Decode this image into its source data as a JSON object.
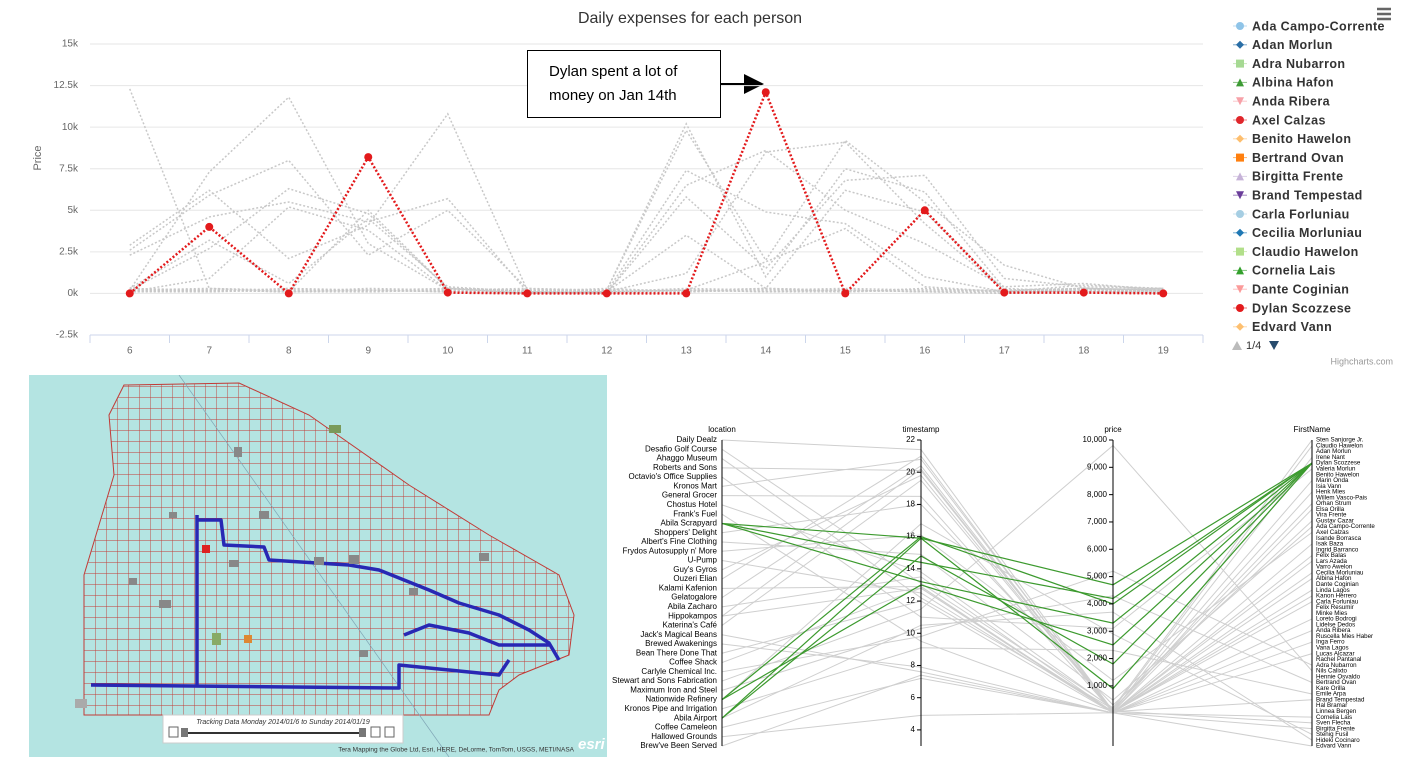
{
  "chart_data": [
    {
      "type": "line",
      "title": "Daily expenses for each person",
      "y_title": "Price",
      "categories": [
        "6",
        "7",
        "8",
        "9",
        "10",
        "11",
        "12",
        "13",
        "14",
        "15",
        "16",
        "17",
        "18",
        "19"
      ],
      "ylim": [
        -2500,
        15000
      ],
      "yticks": [
        {
          "value": -2500,
          "label": "-2.5k"
        },
        {
          "value": 0,
          "label": "0k"
        },
        {
          "value": 2500,
          "label": "2.5k"
        },
        {
          "value": 5000,
          "label": "5k"
        },
        {
          "value": 7500,
          "label": "7.5k"
        },
        {
          "value": 10000,
          "label": "10k"
        },
        {
          "value": 12500,
          "label": "12.5k"
        },
        {
          "value": 15000,
          "label": "15k"
        }
      ],
      "grid": true,
      "dash_style": "dot",
      "muted_color": "#c8c8c8",
      "annotation": "Dylan spent a lot of money on Jan 14th",
      "legend_page": "1/4",
      "credits": "Highcharts.com",
      "series": [
        {
          "name": "Ada Campo-Corrente",
          "color": "#8fc4e8",
          "marker": "circle",
          "values": [
            12300,
            300,
            100,
            200,
            100,
            0,
            0,
            200,
            100,
            200,
            100,
            0,
            200,
            100
          ]
        },
        {
          "name": "Adan Morlun",
          "color": "#2a6ea6",
          "marker": "diamond",
          "values": [
            2900,
            6200,
            2100,
            4100,
            10800,
            200,
            200,
            9800,
            2000,
            9200,
            5500,
            1700,
            300,
            200
          ]
        },
        {
          "name": "Adra Nubarron",
          "color": "#a6d993",
          "marker": "square",
          "values": [
            200,
            7300,
            11800,
            3000,
            200,
            100,
            0,
            6500,
            8600,
            5000,
            3000,
            400,
            600,
            200
          ]
        },
        {
          "name": "Albina Hafon",
          "color": "#3d9b35",
          "marker": "triangle",
          "values": [
            2600,
            5900,
            8000,
            2300,
            5000,
            300,
            100,
            7400,
            4900,
            4200,
            1000,
            100,
            500,
            300
          ]
        },
        {
          "name": "Anda Ribera",
          "color": "#f7a1a8",
          "marker": "triangle-down",
          "values": [
            200,
            2700,
            6300,
            4800,
            300,
            200,
            200,
            10200,
            1000,
            7500,
            6100,
            300,
            100,
            100
          ]
        },
        {
          "name": "Axel Calzas",
          "color": "#e0262b",
          "marker": "circle",
          "values": [
            2300,
            4600,
            5500,
            4300,
            5700,
            100,
            0,
            5800,
            1500,
            6800,
            7100,
            900,
            400,
            300
          ]
        },
        {
          "name": "Benito Hawelon",
          "color": "#fdbe6e",
          "marker": "diamond",
          "values": [
            100,
            900,
            5200,
            3800,
            200,
            200,
            100,
            3500,
            300,
            6200,
            4900,
            200,
            300,
            100
          ]
        },
        {
          "name": "Bertrand Ovan",
          "color": "#ff7f0e",
          "marker": "square",
          "values": [
            300,
            3200,
            600,
            4500,
            400,
            100,
            100,
            1200,
            8500,
            9100,
            4200,
            200,
            200,
            100
          ]
        },
        {
          "name": "Birgitta Frente",
          "color": "#c6b3d8",
          "marker": "triangle",
          "values": [
            100,
            200,
            100,
            5000,
            300,
            0,
            100,
            200,
            1900,
            3900,
            400,
            100,
            100,
            0
          ]
        },
        {
          "name": "Brand Tempestad",
          "color": "#6a3d9a",
          "marker": "triangle-down",
          "values": [
            200,
            100,
            300,
            200,
            100,
            200,
            100,
            300,
            200,
            100,
            200,
            100,
            300,
            200
          ]
        },
        {
          "name": "Carla Forluniau",
          "color": "#a6cee3",
          "marker": "circle",
          "values": [
            100,
            200,
            100,
            300,
            200,
            100,
            200,
            100,
            300,
            200,
            100,
            200,
            100,
            300
          ]
        },
        {
          "name": "Cecilia Morluniau",
          "color": "#1f78b4",
          "marker": "diamond",
          "values": [
            300,
            200,
            100,
            200,
            300,
            200,
            100,
            200,
            300,
            200,
            100,
            200,
            300,
            200
          ]
        },
        {
          "name": "Claudio Hawelon",
          "color": "#b2df8a",
          "marker": "square",
          "values": [
            200,
            300,
            200,
            100,
            200,
            300,
            200,
            100,
            200,
            300,
            200,
            100,
            200,
            300
          ]
        },
        {
          "name": "Cornelia Lais",
          "color": "#33a02c",
          "marker": "triangle",
          "values": [
            100,
            100,
            200,
            200,
            100,
            100,
            200,
            200,
            100,
            100,
            200,
            200,
            100,
            100
          ]
        },
        {
          "name": "Dante Coginian",
          "color": "#fb9a99",
          "marker": "triangle-down",
          "values": [
            200,
            200,
            100,
            100,
            200,
            200,
            100,
            100,
            200,
            200,
            100,
            100,
            200,
            200
          ]
        },
        {
          "name": "Dylan Scozzese",
          "color": "#e31a1c",
          "marker": "circle",
          "highlighted": true,
          "values": [
            0,
            4000,
            0,
            8200,
            50,
            0,
            0,
            0,
            12100,
            0,
            5000,
            50,
            50,
            0
          ]
        },
        {
          "name": "Edvard Vann",
          "color": "#fdbf6f",
          "marker": "diamond",
          "values": [
            300,
            100,
            300,
            100,
            300,
            100,
            300,
            100,
            300,
            100,
            300,
            100,
            300,
            100
          ]
        }
      ]
    },
    {
      "type": "parallel",
      "axes": [
        "location",
        "timestamp",
        "price",
        "FirstName"
      ],
      "color": "#cfcfcf",
      "highlight_color": "#3c9a2e",
      "locations": [
        "Daily Dealz",
        "Desafio Golf Course",
        "Ahaggo Museum",
        "Roberts and Sons",
        "Octavio's Office Supplies",
        "Kronos Mart",
        "General Grocer",
        "Chostus Hotel",
        "Frank's Fuel",
        "Abila Scrapyard",
        "Shoppers' Delight",
        "Albert's Fine Clothing",
        "Frydos Autosupply n' More",
        "U-Pump",
        "Guy's Gyros",
        "Ouzeri Elian",
        "Kalami Kafenion",
        "Gelatogalore",
        "Abila Zacharo",
        "Hippokampos",
        "Katerina's Café",
        "Jack's Magical Beans",
        "Brewed Awakenings",
        "Bean There Done That",
        "Coffee Shack",
        "Carlyle Chemical Inc.",
        "Stewart and Sons Fabrication",
        "Maximum Iron and Steel",
        "Nationwide Refinery",
        "Kronos Pipe and Irrigation",
        "Abila Airport",
        "Coffee Cameleon",
        "Hallowed Grounds",
        "Brew've Been Served"
      ],
      "timestamp_lim": [
        3,
        22
      ],
      "timestamp_ticks": [
        4,
        6,
        8,
        10,
        12,
        14,
        16,
        18,
        20,
        22
      ],
      "price_lim": [
        -1200,
        10000
      ],
      "price_ticks": [
        {
          "value": 1000,
          "label": "1,000"
        },
        {
          "value": 2000,
          "label": "2,000"
        },
        {
          "value": 3000,
          "label": "3,000"
        },
        {
          "value": 4000,
          "label": "4,000"
        },
        {
          "value": 5000,
          "label": "5,000"
        },
        {
          "value": 6000,
          "label": "6,000"
        },
        {
          "value": 7000,
          "label": "7,000"
        },
        {
          "value": 8000,
          "label": "8,000"
        },
        {
          "value": 9000,
          "label": "9,000"
        },
        {
          "value": 10000,
          "label": "10,000"
        }
      ],
      "names": [
        "Sten Sanjorge Jr.",
        "Claudio Hawelon",
        "Adan Morlun",
        "Irene Nant",
        "Dylan Scozzese",
        "Valeria Morlun",
        "Benito Hawelon",
        "Marin Onda",
        "Isia Vann",
        "Henk Mies",
        "Willem Vasco-Pais",
        "Orhan Strum",
        "Elsa Orilla",
        "Vira Frente",
        "Gustav Cazar",
        "Ada Campo-Corrente",
        "Axel Calzas",
        "Isande Borrasca",
        "Isak Baza",
        "Ingrid Barranco",
        "Felix Balas",
        "Lars Azada",
        "Varro Awelon",
        "Cecilia Morluniau",
        "Albina Hafon",
        "Dante Coginian",
        "Linda Lagos",
        "Kanon Herrero",
        "Carla Forluniau",
        "Felix Resumir",
        "Minke Mies",
        "Loreto Bodrogi",
        "Lidelse Dedos",
        "Anda Ribera",
        "Ruscella Mies Haber",
        "Inga Ferro",
        "Vana Lagos",
        "Lucas Alcazar",
        "Rachel Pantanal",
        "Adra Nubarron",
        "Nils Calixto",
        "Hennie Osvaldo",
        "Bertrand Ovan",
        "Kare Orilla",
        "Emile Arpa",
        "Brand Tempestad",
        "Hal Bramar",
        "Linnea Bergen",
        "Cornelia Lais",
        "Sven Flecha",
        "Birgitta Frente",
        "Stenig Fusil",
        "Hideki Cocinaro",
        "Edvard Vann"
      ],
      "records": [
        {
          "location": "Desafio Golf Course",
          "timestamp": 13.1,
          "price": 200,
          "name": "Sten Sanjorge Jr."
        },
        {
          "location": "Ahaggo Museum",
          "timestamp": 12.2,
          "price": 150,
          "name": "Claudio Hawelon"
        },
        {
          "location": "Roberts and Sons",
          "timestamp": 20.1,
          "price": 60,
          "name": "Irene Nant"
        },
        {
          "location": "Octavio's Office Supplies",
          "timestamp": 11.0,
          "price": 3100,
          "name": "Valeria Morlun"
        },
        {
          "location": "Kronos Mart",
          "timestamp": 20.8,
          "price": 90,
          "name": "Marin Onda"
        },
        {
          "location": "General Grocer",
          "timestamp": 18.5,
          "price": 40,
          "name": "Henk Mies"
        },
        {
          "location": "Chostus Hotel",
          "timestamp": 13.8,
          "price": 160,
          "name": "Orhan Strum"
        },
        {
          "location": "Frank's Fuel",
          "timestamp": 9.5,
          "price": 50,
          "name": "Elsa Orilla"
        },
        {
          "location": "Shoppers' Delight",
          "timestamp": 18.0,
          "price": 300,
          "name": "Gustav Cazar"
        },
        {
          "location": "Albert's Fine Clothing",
          "timestamp": 14.9,
          "price": 480,
          "name": "Ada Campo-Corrente"
        },
        {
          "location": "Frydos Autosupply n' More",
          "timestamp": 16.1,
          "price": 1200,
          "name": "Axel Calzas"
        },
        {
          "location": "U-Pump",
          "timestamp": 12.5,
          "price": 30,
          "name": "Isak Baza"
        },
        {
          "location": "Guy's Gyros",
          "timestamp": 19.8,
          "price": 25,
          "name": "Felix Balas"
        },
        {
          "location": "Ouzeri Elian",
          "timestamp": 21.0,
          "price": 35,
          "name": "Lars Azada"
        },
        {
          "location": "Kalami Kafenion",
          "timestamp": 12.9,
          "price": 20,
          "name": "Cecilia Morluniau"
        },
        {
          "location": "Gelatogalore",
          "timestamp": 20.4,
          "price": 15,
          "name": "Albina Hafon"
        },
        {
          "location": "Abila Zacharo",
          "timestamp": 13.5,
          "price": 30,
          "name": "Linda Lagos"
        },
        {
          "location": "Hippokampos",
          "timestamp": 20.2,
          "price": 40,
          "name": "Kanon Herrero"
        },
        {
          "location": "Katerina's Café",
          "timestamp": 19.5,
          "price": 50,
          "name": "Carla Forluniau"
        },
        {
          "location": "Jack's Magical Beans",
          "timestamp": 7.6,
          "price": 12,
          "name": "Loreto Bodrogi"
        },
        {
          "location": "Brewed Awakenings",
          "timestamp": 7.9,
          "price": 10,
          "name": "Anda Ribera"
        },
        {
          "location": "Bean There Done That",
          "timestamp": 12.0,
          "price": 15,
          "name": "Inga Ferro"
        },
        {
          "location": "Coffee Shack",
          "timestamp": 12.8,
          "price": 10,
          "name": "Lucas Alcazar"
        },
        {
          "location": "Carlyle Chemical Inc.",
          "timestamp": 9.8,
          "price": 5200,
          "name": "Adra Nubarron"
        },
        {
          "location": "Stewart and Sons Fabrication",
          "timestamp": 11.5,
          "price": 9800,
          "name": "Nils Calixto"
        },
        {
          "location": "Maximum Iron and Steel",
          "timestamp": 10.3,
          "price": 4300,
          "name": "Bertrand Ovan"
        },
        {
          "location": "Kronos Pipe and Irrigation",
          "timestamp": 9.1,
          "price": 2300,
          "name": "Emile Arpa"
        },
        {
          "location": "Coffee Cameleon",
          "timestamp": 7.2,
          "price": 12,
          "name": "Cornelia Lais"
        },
        {
          "location": "Hallowed Grounds",
          "timestamp": 4.9,
          "price": 18,
          "name": "Birgitta Frente"
        },
        {
          "location": "Brew've Been Served",
          "timestamp": 7.4,
          "price": 10,
          "name": "Edvard Vann"
        },
        {
          "location": "Daily Dealz",
          "timestamp": 21.4,
          "price": 80,
          "name": "Sven Flecha"
        },
        {
          "location": "Hippokampos",
          "timestamp": 12.8,
          "price": 60,
          "name": "Brand Tempestad"
        },
        {
          "location": "Abila Airport",
          "timestamp": 10.5,
          "price": 3700,
          "name": "Hideki Cocinaro"
        },
        {
          "location": "Nationwide Refinery",
          "timestamp": 16.8,
          "price": 2900,
          "name": "Stenig Fusil"
        },
        {
          "location": "Abila Scrapyard",
          "timestamp": 15.9,
          "price": 4700,
          "name": "Dylan Scozzese",
          "highlighted": true
        },
        {
          "location": "Abila Scrapyard",
          "timestamp": 14.4,
          "price": 4200,
          "name": "Dylan Scozzese",
          "highlighted": true
        },
        {
          "location": "Abila Scrapyard",
          "timestamp": 13.2,
          "price": 3300,
          "name": "Dylan Scozzese",
          "highlighted": true
        },
        {
          "location": "Nationwide Refinery",
          "timestamp": 13.0,
          "price": 2500,
          "name": "Dylan Scozzese",
          "highlighted": true
        },
        {
          "location": "Abila Airport",
          "timestamp": 14.8,
          "price": 1800,
          "name": "Dylan Scozzese",
          "highlighted": true
        },
        {
          "location": "Abila Airport",
          "timestamp": 15.9,
          "price": 900,
          "name": "Dylan Scozzese",
          "highlighted": true
        },
        {
          "location": "Nationwide Refinery",
          "timestamp": 16.0,
          "price": 4000,
          "name": "Dylan Scozzese",
          "highlighted": true
        }
      ]
    }
  ],
  "map": {
    "tracking_label": "Tracking Data Monday 2014/01/6 to Sunday 2014/01/19",
    "attribution": "Tera Mapping the Globe Ltd, Esri, HERE, DeLorme, TomTom, USGS, METI/NASA",
    "logo": "esri"
  }
}
